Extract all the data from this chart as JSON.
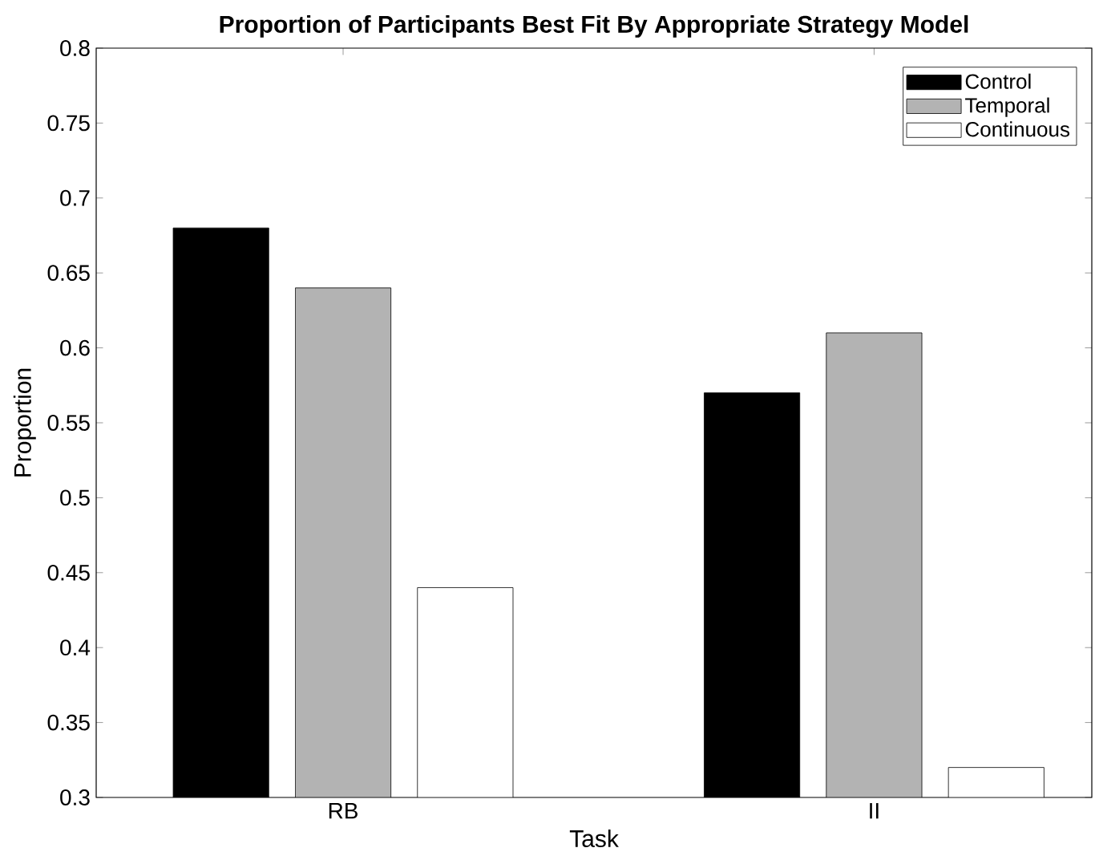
{
  "chart_data": {
    "type": "bar",
    "title": "Proportion of Participants Best Fit By Appropriate Strategy Model",
    "xlabel": "Task",
    "ylabel": "Proportion",
    "categories": [
      "RB",
      "II"
    ],
    "series": [
      {
        "name": "Control",
        "color": "#000000",
        "values": [
          0.68,
          0.57
        ]
      },
      {
        "name": "Temporal",
        "color": "#b3b3b3",
        "values": [
          0.64,
          0.61
        ]
      },
      {
        "name": "Continuous",
        "color": "#ffffff",
        "values": [
          0.44,
          0.32
        ]
      }
    ],
    "ylim": [
      0.3,
      0.8
    ],
    "yticks": [
      0.3,
      0.35,
      0.4,
      0.45,
      0.5,
      0.55,
      0.6,
      0.65,
      0.7,
      0.75,
      0.8
    ],
    "grid": false,
    "legend": "top right"
  }
}
